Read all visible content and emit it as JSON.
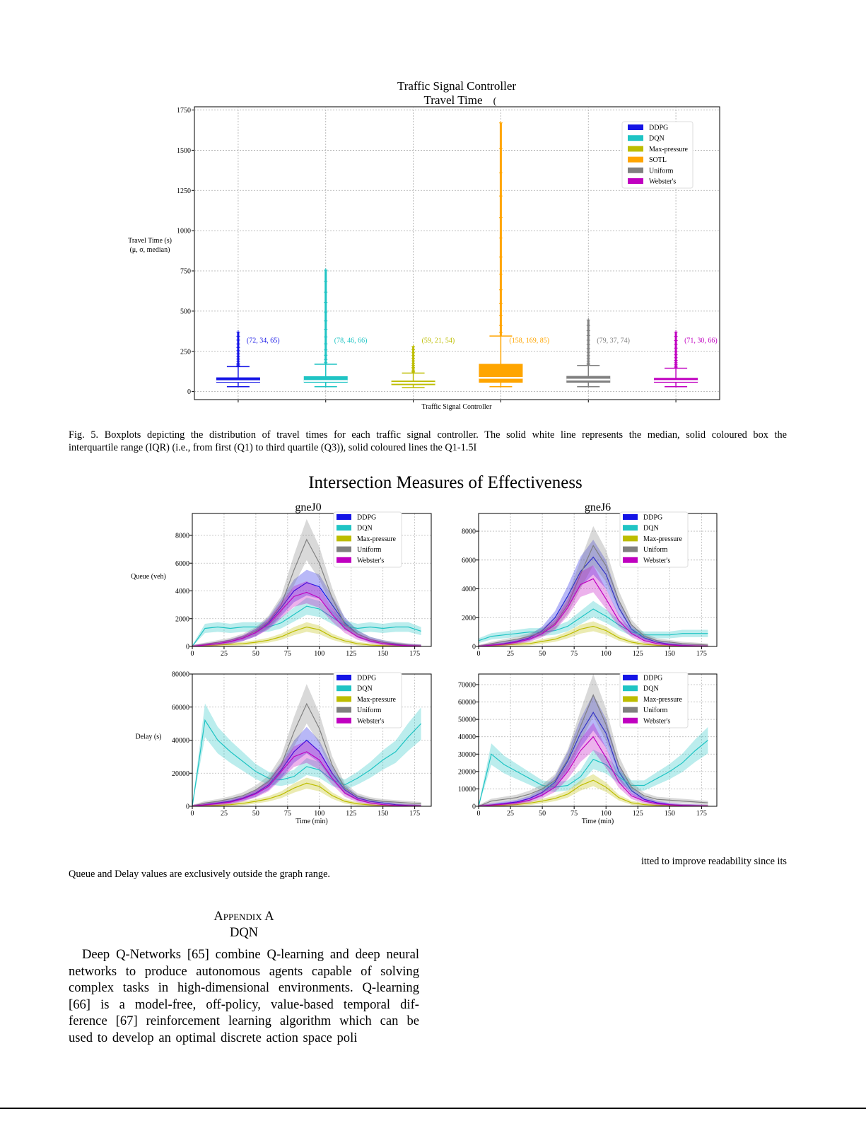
{
  "colors": {
    "DDPG": "#1414e6",
    "DQN": "#1fc4c4",
    "Max-pressure": "#bdbd00",
    "SOTL": "#ffa500",
    "Uniform": "#808080",
    "Webster's": "#c000c0"
  },
  "chart_data": [
    {
      "type": "box",
      "title": "Traffic Signal Controller",
      "title_line2": "Travel Time",
      "title_artifact": "(",
      "xlabel": "Traffic Signal Controller",
      "ylabel": "Travel Time (s)",
      "ylabel_line2": "(μ, σ, median)",
      "ylim": [
        -50,
        1770
      ],
      "yticks": [
        0,
        250,
        500,
        750,
        1000,
        1250,
        1500,
        1750
      ],
      "grid": true,
      "legend": "top-right",
      "series": [
        {
          "name": "DDPG",
          "q1": 55,
          "median": 65,
          "q3": 88,
          "whisker_low": 30,
          "whisker_high": 155,
          "outlier_max": 370,
          "annotation": "(72, 34, 65)"
        },
        {
          "name": "DQN",
          "q1": 55,
          "median": 66,
          "q3": 95,
          "whisker_low": 30,
          "whisker_high": 170,
          "outlier_max": 755,
          "annotation": "(78, 46, 66)"
        },
        {
          "name": "Max-pressure",
          "q1": 40,
          "median": 54,
          "q3": 68,
          "whisker_low": 25,
          "whisker_high": 115,
          "outlier_max": 280,
          "annotation": "(59, 21, 54)"
        },
        {
          "name": "SOTL",
          "q1": 55,
          "median": 85,
          "q3": 172,
          "whisker_low": 30,
          "whisker_high": 345,
          "outlier_max": 1670,
          "annotation": "(158, 169, 85)"
        },
        {
          "name": "Uniform",
          "q1": 55,
          "median": 74,
          "q3": 97,
          "whisker_low": 30,
          "whisker_high": 162,
          "outlier_max": 445,
          "annotation": "(79, 37, 74)"
        },
        {
          "name": "Webster's",
          "q1": 55,
          "median": 66,
          "q3": 85,
          "whisker_low": 30,
          "whisker_high": 145,
          "outlier_max": 370,
          "annotation": "(71, 30, 66)"
        }
      ]
    },
    {
      "type": "line",
      "title": "gneJ0",
      "ylabel": "Queue (veh)",
      "xlabel": "",
      "xlim": [
        0,
        188
      ],
      "ylim": [
        0,
        9580
      ],
      "xticks": [
        0,
        25,
        50,
        75,
        100,
        125,
        150,
        175
      ],
      "yticks": [
        0,
        2000,
        4000,
        6000,
        8000
      ],
      "grid": true,
      "legend": "top-center",
      "band_frac": 0.18,
      "x": [
        0,
        10,
        20,
        30,
        40,
        50,
        60,
        70,
        80,
        90,
        100,
        110,
        120,
        130,
        140,
        150,
        160,
        170,
        180
      ],
      "series": [
        {
          "name": "DDPG",
          "values": [
            0,
            100,
            200,
            350,
            600,
            1000,
            1700,
            2800,
            4000,
            4600,
            4300,
            3000,
            1700,
            900,
            500,
            300,
            150,
            80,
            30
          ]
        },
        {
          "name": "DQN",
          "values": [
            0,
            1300,
            1400,
            1300,
            1400,
            1400,
            1400,
            1700,
            2300,
            2900,
            2700,
            2100,
            1500,
            1300,
            1400,
            1300,
            1400,
            1400,
            1100
          ]
        },
        {
          "name": "Max-pressure",
          "values": [
            0,
            50,
            100,
            150,
            200,
            300,
            450,
            700,
            1100,
            1400,
            1200,
            700,
            400,
            200,
            100,
            60,
            30,
            20,
            10
          ]
        },
        {
          "name": "Uniform",
          "values": [
            0,
            150,
            300,
            450,
            700,
            1100,
            1800,
            3000,
            5500,
            7700,
            6000,
            3500,
            1600,
            900,
            500,
            300,
            200,
            100,
            50
          ]
        },
        {
          "name": "Webster's",
          "values": [
            0,
            100,
            200,
            350,
            600,
            1000,
            1600,
            2600,
            3600,
            3900,
            3500,
            2300,
            1300,
            700,
            400,
            200,
            100,
            50,
            20
          ]
        }
      ]
    },
    {
      "type": "line",
      "title": "gneJ6",
      "ylabel": "",
      "xlabel": "",
      "xlim": [
        0,
        187
      ],
      "ylim": [
        0,
        9230
      ],
      "xticks": [
        0,
        25,
        50,
        75,
        100,
        125,
        150,
        175
      ],
      "yticks": [
        0,
        2000,
        4000,
        6000,
        8000
      ],
      "grid": true,
      "legend": "top-right",
      "band_frac": 0.18,
      "x": [
        0,
        10,
        20,
        30,
        40,
        50,
        60,
        70,
        80,
        90,
        100,
        110,
        120,
        130,
        140,
        150,
        160,
        170,
        180
      ],
      "series": [
        {
          "name": "DDPG",
          "values": [
            0,
            100,
            200,
            350,
            600,
            1100,
            2000,
            3500,
            5200,
            6200,
            5000,
            2700,
            1200,
            600,
            300,
            150,
            80,
            40,
            20
          ]
        },
        {
          "name": "DQN",
          "values": [
            400,
            700,
            800,
            900,
            1000,
            1000,
            1100,
            1400,
            2000,
            2600,
            2100,
            1500,
            1000,
            800,
            800,
            800,
            900,
            900,
            900
          ]
        },
        {
          "name": "Max-pressure",
          "values": [
            0,
            50,
            100,
            150,
            200,
            350,
            500,
            800,
            1200,
            1400,
            1100,
            600,
            300,
            150,
            80,
            40,
            20,
            10,
            10
          ]
        },
        {
          "name": "Uniform",
          "values": [
            0,
            200,
            350,
            500,
            700,
            1000,
            1600,
            2900,
            5000,
            7000,
            5600,
            3200,
            1500,
            700,
            400,
            300,
            200,
            150,
            100
          ]
        },
        {
          "name": "Webster's",
          "values": [
            0,
            80,
            150,
            300,
            500,
            900,
            1500,
            2700,
            4300,
            4700,
            3300,
            1800,
            900,
            400,
            200,
            100,
            50,
            30,
            10
          ]
        }
      ]
    },
    {
      "type": "line",
      "title": "",
      "ylabel": "Delay (s)",
      "xlabel": "Time (min)",
      "xlim": [
        0,
        188
      ],
      "ylim": [
        0,
        80000
      ],
      "xticks": [
        0,
        25,
        50,
        75,
        100,
        125,
        150,
        175
      ],
      "yticks": [
        0,
        20000,
        40000,
        60000,
        80000
      ],
      "grid": true,
      "legend": "top-center",
      "band_frac": 0.18,
      "x": [
        0,
        10,
        20,
        30,
        40,
        50,
        60,
        70,
        80,
        90,
        100,
        110,
        120,
        130,
        140,
        150,
        160,
        170,
        180
      ],
      "series": [
        {
          "name": "DDPG",
          "values": [
            0,
            1000,
            2000,
            3000,
            5000,
            8000,
            13000,
            22000,
            33000,
            40000,
            33000,
            20000,
            10000,
            5000,
            3000,
            2000,
            1000,
            500,
            200
          ]
        },
        {
          "name": "DQN",
          "values": [
            0,
            52000,
            40000,
            33000,
            27000,
            21000,
            17000,
            16000,
            18000,
            24000,
            22000,
            16000,
            13000,
            17000,
            22000,
            28000,
            33000,
            42000,
            50000
          ]
        },
        {
          "name": "Max-pressure",
          "values": [
            0,
            300,
            600,
            1000,
            1800,
            3000,
            4500,
            7000,
            11000,
            14000,
            12000,
            6500,
            3000,
            1500,
            800,
            400,
            200,
            100,
            50
          ]
        },
        {
          "name": "Uniform",
          "values": [
            0,
            2000,
            3000,
            4500,
            6500,
            10000,
            15000,
            25000,
            45000,
            62000,
            47000,
            25000,
            11000,
            6000,
            4000,
            3000,
            2500,
            2000,
            1500
          ]
        },
        {
          "name": "Webster's",
          "values": [
            0,
            800,
            1600,
            2500,
            4500,
            7500,
            12000,
            21000,
            30000,
            33000,
            28000,
            17000,
            8000,
            4000,
            2000,
            1000,
            500,
            300,
            100
          ]
        }
      ]
    },
    {
      "type": "line",
      "title": "",
      "ylabel": "",
      "xlabel": "Time (min)",
      "xlim": [
        0,
        187
      ],
      "ylim": [
        0,
        76100
      ],
      "xticks": [
        0,
        25,
        50,
        75,
        100,
        125,
        150,
        175
      ],
      "yticks": [
        0,
        10000,
        20000,
        30000,
        40000,
        50000,
        60000,
        70000
      ],
      "grid": true,
      "legend": "top-right",
      "band_frac": 0.18,
      "x": [
        0,
        10,
        20,
        30,
        40,
        50,
        60,
        70,
        80,
        90,
        100,
        110,
        120,
        130,
        140,
        150,
        160,
        170,
        180
      ],
      "series": [
        {
          "name": "DDPG",
          "values": [
            0,
            800,
            1600,
            2500,
            4500,
            8000,
            14000,
            26000,
            42000,
            54000,
            42000,
            20000,
            9000,
            4000,
            2000,
            1000,
            500,
            300,
            100
          ]
        },
        {
          "name": "DQN",
          "values": [
            0,
            30000,
            24000,
            20000,
            16000,
            12000,
            11000,
            12000,
            17000,
            27000,
            24000,
            17000,
            12000,
            12000,
            16000,
            20000,
            25000,
            32000,
            38000
          ]
        },
        {
          "name": "Max-pressure",
          "values": [
            0,
            300,
            600,
            1000,
            1800,
            3000,
            4500,
            7000,
            12000,
            15000,
            11000,
            5000,
            2000,
            1000,
            500,
            300,
            200,
            100,
            50
          ]
        },
        {
          "name": "Uniform",
          "values": [
            0,
            3000,
            4000,
            5000,
            7000,
            10000,
            15000,
            27000,
            46000,
            64000,
            47000,
            24000,
            11000,
            6000,
            4000,
            3500,
            3000,
            2500,
            2000
          ]
        },
        {
          "name": "Webster's",
          "values": [
            0,
            600,
            1200,
            2000,
            3500,
            6500,
            11000,
            20000,
            32000,
            40000,
            28000,
            14000,
            6000,
            3000,
            1500,
            800,
            400,
            200,
            100
          ]
        }
      ]
    }
  ],
  "figure2_title": "Intersection Measures of Effectiveness",
  "caption5": {
    "line1": "Fig. 5.  Boxplots depicting the distribution of travel times for each traffic signal controller. The solid white line represents the median, solid coloured box the",
    "line2": "interquartile range (IQR) (i.e., from first (Q1) to third quartile (Q3)), solid coloured lines the Q1-1.5I"
  },
  "caption6": {
    "line1": "itted to improve readability since its",
    "line2": "Queue and Delay values are exclusively outside the graph range."
  },
  "appendix": {
    "heading": "Appendix A",
    "subheading": "DQN",
    "lines": [
      "Deep Q-Networks [65] combine Q-learning and deep neural",
      "networks to produce autonomous agents capable of solving",
      "complex tasks in high-dimensional environments. Q-learning",
      "[66] is a model-free, off-policy, value-based temporal dif-",
      "ference [67] reinforcement learning algorithm which can be",
      "used to develop an optimal discrete action space poli"
    ]
  }
}
